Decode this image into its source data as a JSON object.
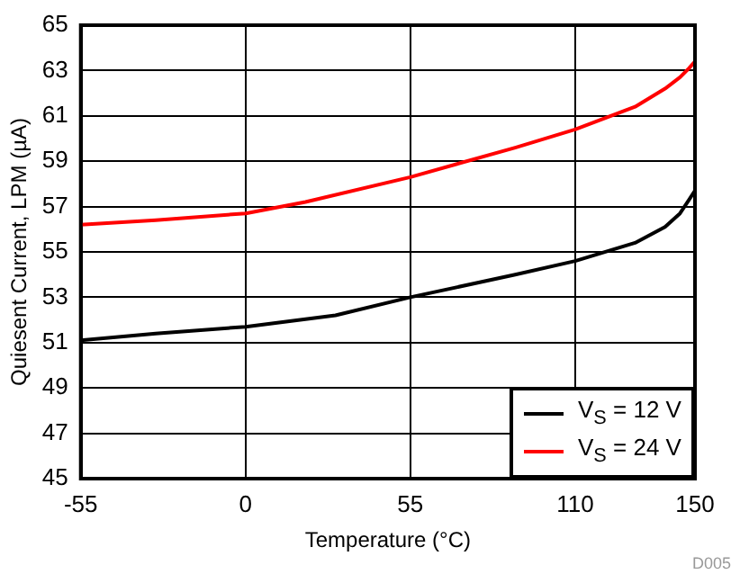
{
  "chart_data": {
    "type": "line",
    "xlabel": "Temperature (°C)",
    "ylabel": "Quiesent Current, LPM (µA)",
    "xlim": [
      -55,
      150
    ],
    "xticks": [
      -55,
      0,
      55,
      110,
      150
    ],
    "ylim": [
      45,
      65
    ],
    "yticks": [
      45,
      47,
      49,
      51,
      53,
      55,
      57,
      59,
      61,
      63,
      65
    ],
    "grid": true,
    "legend": "bottom right",
    "marker": "none",
    "line_style": "solid",
    "annotations": [
      "D005"
    ],
    "series": [
      {
        "name": "V$_{S}$ = 12 V",
        "color": "#000000",
        "x": [
          -55,
          -30,
          0,
          30,
          55,
          90,
          110,
          130,
          140,
          145,
          148,
          150
        ],
        "values": [
          51.1,
          51.4,
          51.7,
          52.2,
          53.0,
          54.0,
          54.6,
          55.4,
          56.1,
          56.7,
          57.3,
          57.7
        ]
      },
      {
        "name": "V$_{S}$ = 24 V",
        "color": "#ff0000",
        "x": [
          -55,
          -30,
          0,
          20,
          55,
          90,
          110,
          130,
          140,
          145,
          148,
          150
        ],
        "values": [
          56.2,
          56.4,
          56.7,
          57.2,
          58.3,
          59.6,
          60.4,
          61.4,
          62.2,
          62.7,
          63.1,
          63.4
        ]
      }
    ]
  }
}
